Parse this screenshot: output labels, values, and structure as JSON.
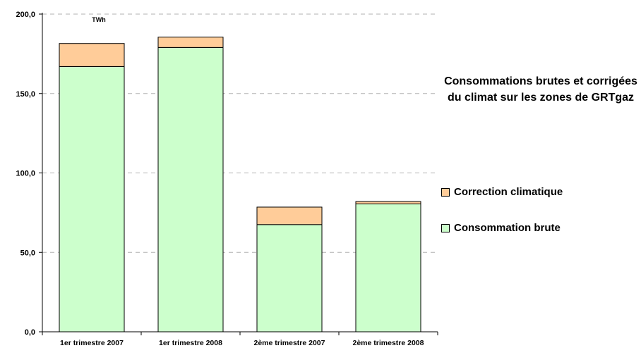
{
  "chart_data": {
    "type": "bar",
    "stacked": true,
    "title": "Consommations brutes et corrigées du climat sur les zones de GRTgaz",
    "unit_label": "TWh",
    "categories": [
      "1er trimestre 2007",
      "1er trimestre 2008",
      "2ème trimestre 2007",
      "2ème trimestre 2008"
    ],
    "series": [
      {
        "name": "Consommation brute",
        "values": [
          167.0,
          179.0,
          67.5,
          80.5
        ],
        "color": "#ccffcc"
      },
      {
        "name": "Correction climatique",
        "values": [
          14.5,
          6.5,
          11.0,
          1.5
        ],
        "color": "#ffcc99"
      }
    ],
    "y_ticks": [
      "0,0",
      "50,0",
      "100,0",
      "150,0",
      "200,0"
    ],
    "ylim": [
      0,
      200
    ],
    "grid": "horizontal dashed",
    "legend_position": "right"
  }
}
